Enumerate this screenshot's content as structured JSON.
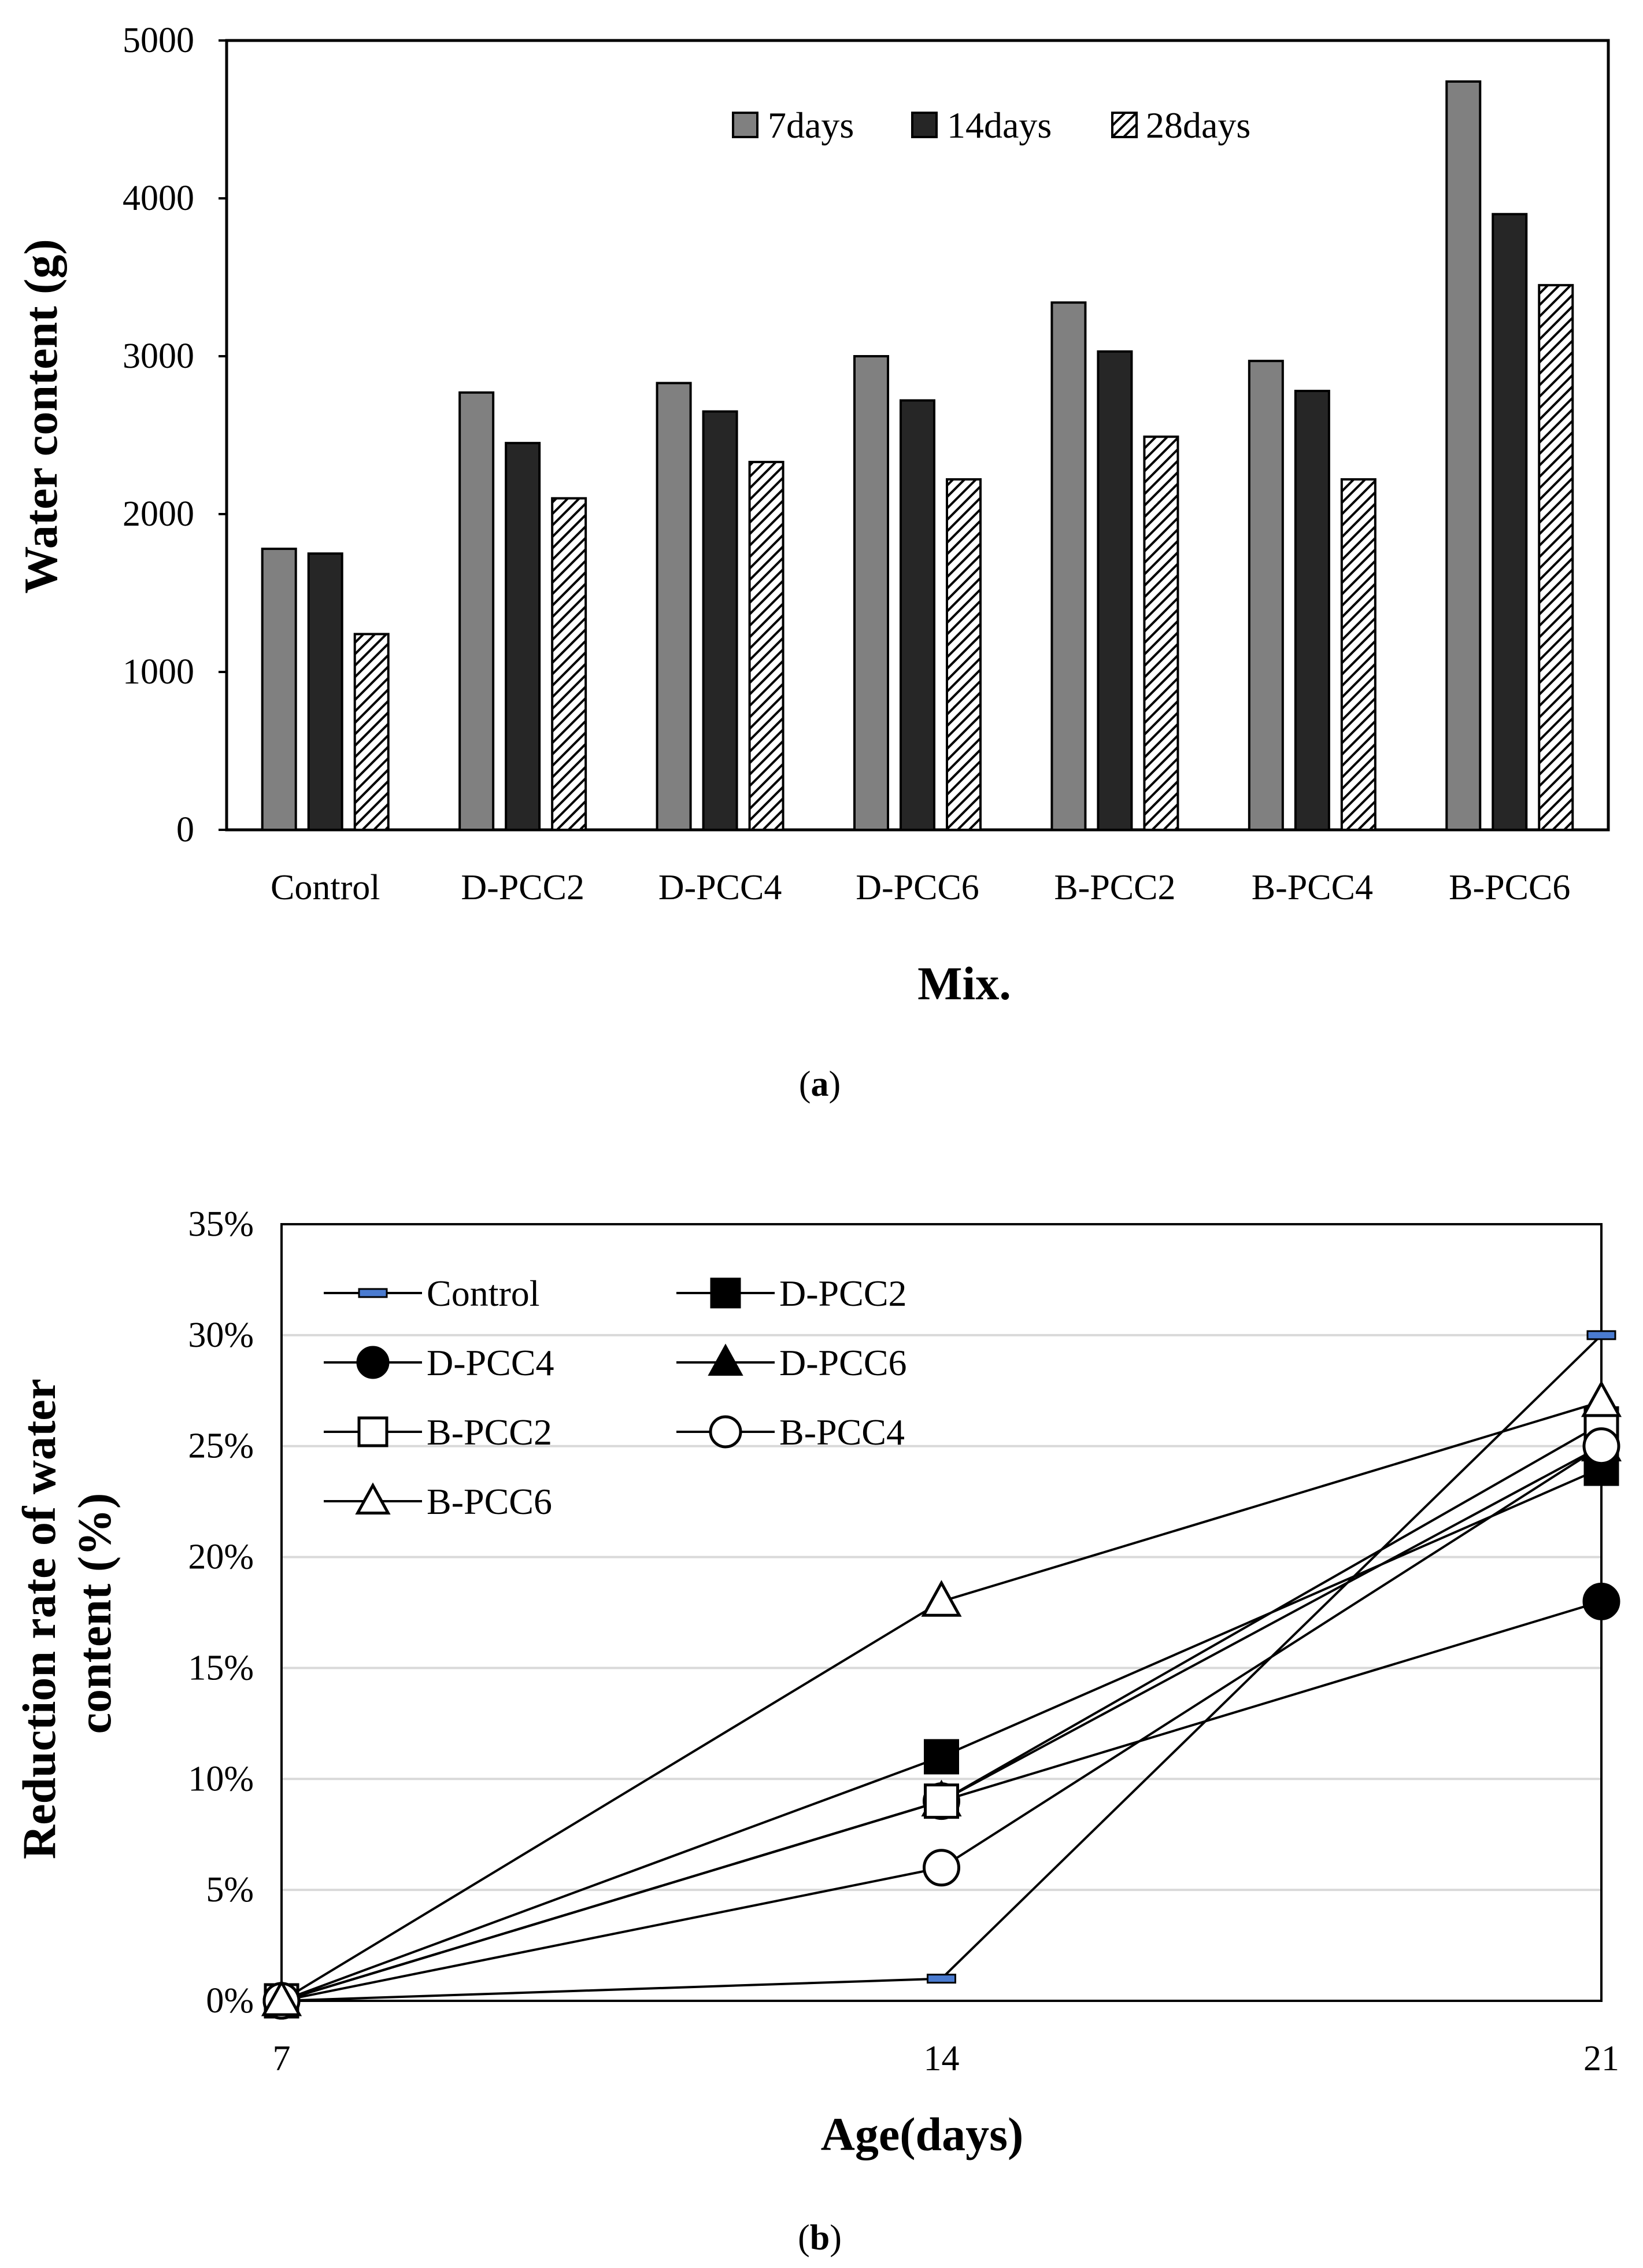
{
  "chart_data": [
    {
      "panel": "a",
      "panel_label": {
        "open": "(",
        "letter": "a",
        "close": ")"
      },
      "type": "bar",
      "title": "",
      "xlabel": "Mix.",
      "ylabel": "Water content (g)",
      "ylim": [
        0,
        5000
      ],
      "yticks": [
        "0",
        "1000",
        "2000",
        "3000",
        "4000",
        "5000"
      ],
      "ytick_values": [
        0,
        1000,
        2000,
        3000,
        4000,
        5000
      ],
      "categories": [
        "Control",
        "D-PCC2",
        "D-PCC4",
        "D-PCC6",
        "B-PCC2",
        "B-PCC4",
        "B-PCC6"
      ],
      "legend_position": "top-right",
      "grid": false,
      "series": [
        {
          "name": "7days",
          "fill": "#808080",
          "pattern": "solid",
          "values": [
            1780,
            2770,
            2830,
            3000,
            3340,
            2970,
            4740
          ]
        },
        {
          "name": "14days",
          "fill": "#262626",
          "pattern": "solid",
          "values": [
            1750,
            2450,
            2650,
            2720,
            3030,
            2780,
            3900
          ]
        },
        {
          "name": "28days",
          "fill": "#ffffff",
          "pattern": "diagonal-hatch",
          "values": [
            1240,
            2100,
            2330,
            2220,
            2490,
            2220,
            3450
          ]
        }
      ]
    },
    {
      "panel": "b",
      "panel_label": {
        "open": "(",
        "letter": "b",
        "close": ")"
      },
      "type": "line",
      "title": "",
      "xlabel": "Age(days)",
      "ylabel": [
        "Reduction rate of water",
        "content (%)"
      ],
      "x": [
        7,
        14,
        21
      ],
      "xticks": [
        "7",
        "14",
        "21"
      ],
      "ylim": [
        0,
        35
      ],
      "yticks": [
        "0%",
        "5%",
        "10%",
        "15%",
        "20%",
        "25%",
        "30%",
        "35%"
      ],
      "ytick_values": [
        0,
        5,
        10,
        15,
        20,
        25,
        30,
        35
      ],
      "grid": true,
      "legend_position": "top-left",
      "series": [
        {
          "name": "Control",
          "marker": "dash",
          "values": [
            0,
            1,
            30
          ]
        },
        {
          "name": "D-PCC2",
          "marker": "square-filled",
          "values": [
            0,
            11,
            24
          ]
        },
        {
          "name": "D-PCC4",
          "marker": "circle-filled",
          "values": [
            0,
            9,
            18
          ]
        },
        {
          "name": "D-PCC6",
          "marker": "triangle-filled",
          "values": [
            0,
            9,
            25
          ]
        },
        {
          "name": "B-PCC2",
          "marker": "square-open",
          "values": [
            0,
            9,
            26
          ]
        },
        {
          "name": "B-PCC4",
          "marker": "circle-open",
          "values": [
            0,
            6,
            25
          ]
        },
        {
          "name": "B-PCC6",
          "marker": "triangle-open",
          "values": [
            0,
            18,
            27
          ]
        }
      ],
      "colors": {
        "line": "#000000",
        "marker_accent": "#4a7bd0",
        "grid": "#d9d9d9"
      }
    }
  ]
}
